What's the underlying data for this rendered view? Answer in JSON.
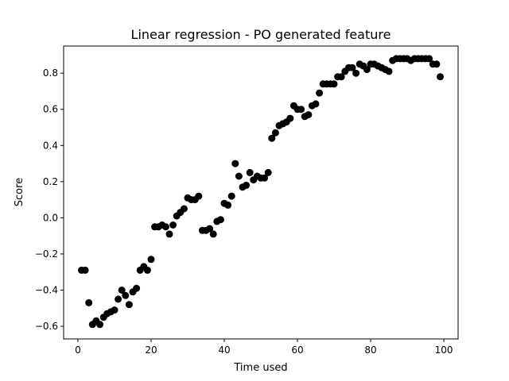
{
  "chart_data": {
    "type": "scatter",
    "title": "Linear regression - PO generated feature",
    "xlabel": "Time used",
    "ylabel": "Score",
    "xlim": [
      -3.9,
      103.9
    ],
    "ylim": [
      -0.67,
      0.95
    ],
    "xticks": [
      0,
      20,
      40,
      60,
      80,
      100
    ],
    "yticks": [
      -0.6,
      -0.4,
      -0.2,
      0.0,
      0.2,
      0.4,
      0.6,
      0.8
    ],
    "xtick_labels": [
      "0",
      "20",
      "40",
      "60",
      "80",
      "100"
    ],
    "ytick_labels": [
      "−0.6",
      "−0.4",
      "−0.2",
      "0.0",
      "0.2",
      "0.4",
      "0.6",
      "0.8"
    ],
    "grid": false,
    "marker_color": "#000000",
    "points": [
      [
        1,
        -0.29
      ],
      [
        2,
        -0.29
      ],
      [
        3,
        -0.47
      ],
      [
        4,
        -0.59
      ],
      [
        5,
        -0.57
      ],
      [
        6,
        -0.59
      ],
      [
        7,
        -0.55
      ],
      [
        8,
        -0.53
      ],
      [
        9,
        -0.52
      ],
      [
        10,
        -0.51
      ],
      [
        11,
        -0.45
      ],
      [
        12,
        -0.4
      ],
      [
        13,
        -0.43
      ],
      [
        14,
        -0.48
      ],
      [
        15,
        -0.41
      ],
      [
        16,
        -0.39
      ],
      [
        17,
        -0.29
      ],
      [
        18,
        -0.27
      ],
      [
        19,
        -0.29
      ],
      [
        20,
        -0.23
      ],
      [
        21,
        -0.05
      ],
      [
        22,
        -0.05
      ],
      [
        23,
        -0.04
      ],
      [
        24,
        -0.05
      ],
      [
        25,
        -0.09
      ],
      [
        26,
        -0.04
      ],
      [
        27,
        0.01
      ],
      [
        28,
        0.03
      ],
      [
        29,
        0.05
      ],
      [
        30,
        0.11
      ],
      [
        31,
        0.1
      ],
      [
        32,
        0.1
      ],
      [
        33,
        0.12
      ],
      [
        34,
        -0.07
      ],
      [
        35,
        -0.07
      ],
      [
        36,
        -0.06
      ],
      [
        37,
        -0.09
      ],
      [
        38,
        -0.02
      ],
      [
        39,
        -0.01
      ],
      [
        40,
        0.08
      ],
      [
        41,
        0.07
      ],
      [
        42,
        0.12
      ],
      [
        43,
        0.3
      ],
      [
        44,
        0.23
      ],
      [
        45,
        0.17
      ],
      [
        46,
        0.18
      ],
      [
        47,
        0.25
      ],
      [
        48,
        0.21
      ],
      [
        49,
        0.23
      ],
      [
        50,
        0.22
      ],
      [
        51,
        0.22
      ],
      [
        52,
        0.25
      ],
      [
        53,
        0.44
      ],
      [
        54,
        0.47
      ],
      [
        55,
        0.51
      ],
      [
        56,
        0.52
      ],
      [
        57,
        0.53
      ],
      [
        58,
        0.55
      ],
      [
        59,
        0.62
      ],
      [
        60,
        0.6
      ],
      [
        61,
        0.6
      ],
      [
        62,
        0.56
      ],
      [
        63,
        0.57
      ],
      [
        64,
        0.62
      ],
      [
        65,
        0.63
      ],
      [
        66,
        0.69
      ],
      [
        67,
        0.74
      ],
      [
        68,
        0.74
      ],
      [
        69,
        0.74
      ],
      [
        70,
        0.74
      ],
      [
        71,
        0.78
      ],
      [
        72,
        0.78
      ],
      [
        73,
        0.81
      ],
      [
        74,
        0.83
      ],
      [
        75,
        0.83
      ],
      [
        76,
        0.8
      ],
      [
        77,
        0.85
      ],
      [
        78,
        0.84
      ],
      [
        79,
        0.82
      ],
      [
        80,
        0.85
      ],
      [
        81,
        0.85
      ],
      [
        82,
        0.84
      ],
      [
        83,
        0.83
      ],
      [
        84,
        0.82
      ],
      [
        85,
        0.81
      ],
      [
        86,
        0.87
      ],
      [
        87,
        0.88
      ],
      [
        88,
        0.88
      ],
      [
        89,
        0.88
      ],
      [
        90,
        0.88
      ],
      [
        91,
        0.87
      ],
      [
        92,
        0.88
      ],
      [
        93,
        0.88
      ],
      [
        94,
        0.88
      ],
      [
        95,
        0.88
      ],
      [
        96,
        0.88
      ],
      [
        97,
        0.85
      ],
      [
        98,
        0.85
      ],
      [
        99,
        0.78
      ]
    ]
  }
}
